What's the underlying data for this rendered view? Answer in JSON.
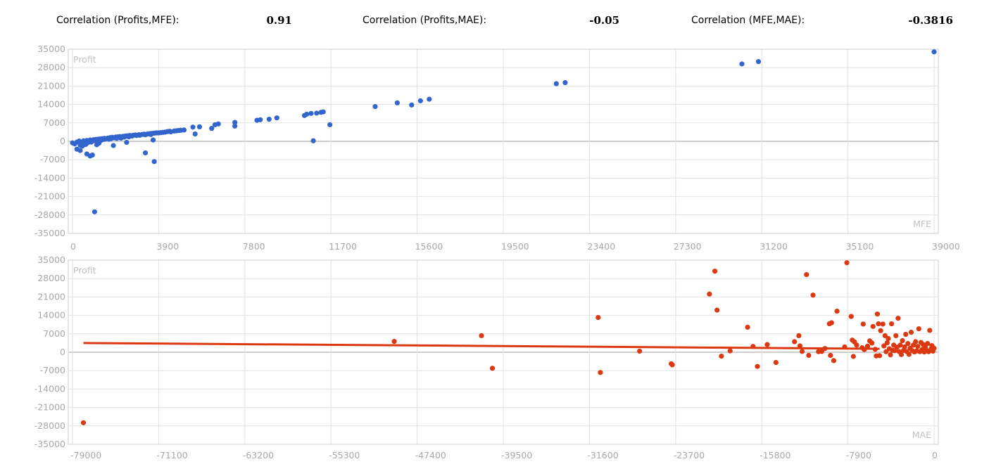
{
  "stats": {
    "corr_profit_mfe_label": "Correlation (Profits,MFE):",
    "corr_profit_mfe_value": "0.91",
    "corr_profit_mae_label": "Correlation (Profits,MAE):",
    "corr_profit_mae_value": "-0.05",
    "corr_mfe_mae_label": "Correlation (MFE,MAE):",
    "corr_mfe_mae_value": "-0.3816"
  },
  "chart_data": [
    {
      "type": "scatter",
      "title": "",
      "xlabel": "MFE",
      "ylabel": "Profit",
      "xlim": [
        0,
        39000
      ],
      "ylim": [
        -35000,
        35000
      ],
      "x_ticks": [
        0,
        3900,
        7800,
        11700,
        15600,
        19500,
        23400,
        27300,
        31200,
        35100,
        39000
      ],
      "y_ticks": [
        35000,
        28000,
        21000,
        14000,
        7000,
        0,
        -7000,
        -14000,
        -21000,
        -28000,
        -35000
      ],
      "grid": true,
      "color": "#3366cc",
      "points": [
        [
          0,
          -600
        ],
        [
          100,
          -1000
        ],
        [
          200,
          -300
        ],
        [
          300,
          100
        ],
        [
          350,
          -1500
        ],
        [
          400,
          -400
        ],
        [
          450,
          -1800
        ],
        [
          500,
          200
        ],
        [
          550,
          -800
        ],
        [
          600,
          -1200
        ],
        [
          650,
          300
        ],
        [
          700,
          -500
        ],
        [
          750,
          100
        ],
        [
          800,
          500
        ],
        [
          850,
          -300
        ],
        [
          900,
          400
        ],
        [
          950,
          600
        ],
        [
          1000,
          200
        ],
        [
          1050,
          700
        ],
        [
          1100,
          -1300
        ],
        [
          1150,
          800
        ],
        [
          1200,
          -700
        ],
        [
          1250,
          900
        ],
        [
          1300,
          400
        ],
        [
          1350,
          1000
        ],
        [
          1400,
          700
        ],
        [
          1450,
          1100
        ],
        [
          1500,
          900
        ],
        [
          1600,
          1200
        ],
        [
          1650,
          800
        ],
        [
          1700,
          1400
        ],
        [
          1750,
          1000
        ],
        [
          1800,
          1500
        ],
        [
          1850,
          -1600
        ],
        [
          1900,
          1300
        ],
        [
          1950,
          1600
        ],
        [
          2000,
          1100
        ],
        [
          2050,
          1700
        ],
        [
          2100,
          1400
        ],
        [
          2150,
          1800
        ],
        [
          2200,
          1200
        ],
        [
          2300,
          1900
        ],
        [
          2350,
          1600
        ],
        [
          2400,
          2000
        ],
        [
          2450,
          -400
        ],
        [
          2500,
          2100
        ],
        [
          2550,
          1700
        ],
        [
          2600,
          2200
        ],
        [
          2700,
          2000
        ],
        [
          2750,
          2300
        ],
        [
          2850,
          2400
        ],
        [
          2900,
          2200
        ],
        [
          3000,
          2500
        ],
        [
          3050,
          2300
        ],
        [
          3150,
          2600
        ],
        [
          3250,
          2700
        ],
        [
          3300,
          2500
        ],
        [
          3400,
          2800
        ],
        [
          3500,
          2900
        ],
        [
          3550,
          2600
        ],
        [
          3600,
          3000
        ],
        [
          3650,
          500
        ],
        [
          3700,
          3100
        ],
        [
          3800,
          3200
        ],
        [
          3900,
          3200
        ],
        [
          4000,
          3300
        ],
        [
          4100,
          3400
        ],
        [
          4200,
          3500
        ],
        [
          4300,
          3700
        ],
        [
          4400,
          3800
        ],
        [
          4450,
          3600
        ],
        [
          4600,
          3900
        ],
        [
          4700,
          4000
        ],
        [
          4800,
          4100
        ],
        [
          4900,
          4200
        ],
        [
          5050,
          4300
        ],
        [
          200,
          -3000
        ],
        [
          350,
          -3500
        ],
        [
          650,
          -4800
        ],
        [
          800,
          -5600
        ],
        [
          900,
          -5200
        ],
        [
          1000,
          -26800
        ],
        [
          3300,
          -4400
        ],
        [
          3700,
          -7700
        ],
        [
          5450,
          5400
        ],
        [
          5550,
          2800
        ],
        [
          5750,
          5500
        ],
        [
          6300,
          4900
        ],
        [
          6450,
          6300
        ],
        [
          6600,
          6600
        ],
        [
          7350,
          5800
        ],
        [
          7350,
          7200
        ],
        [
          8350,
          8000
        ],
        [
          8500,
          8200
        ],
        [
          8900,
          8400
        ],
        [
          9250,
          8900
        ],
        [
          10500,
          9800
        ],
        [
          10600,
          10300
        ],
        [
          10800,
          10600
        ],
        [
          10900,
          200
        ],
        [
          11050,
          10700
        ],
        [
          11250,
          11000
        ],
        [
          11350,
          11200
        ],
        [
          11650,
          6300
        ],
        [
          13700,
          13200
        ],
        [
          14700,
          14600
        ],
        [
          15350,
          13800
        ],
        [
          15750,
          15400
        ],
        [
          16150,
          16000
        ],
        [
          21900,
          21900
        ],
        [
          22300,
          22300
        ],
        [
          30300,
          29400
        ],
        [
          31050,
          30300
        ],
        [
          39000,
          34000
        ]
      ]
    },
    {
      "type": "scatter",
      "title": "",
      "xlabel": "MAE",
      "ylabel": "Profit",
      "xlim": [
        -79000,
        0
      ],
      "ylim": [
        -35000,
        35000
      ],
      "x_ticks": [
        -79000,
        -71100,
        -63200,
        -55300,
        -47400,
        -39500,
        -31600,
        -23700,
        -15800,
        -7900,
        0
      ],
      "y_ticks": [
        35000,
        28000,
        21000,
        14000,
        7000,
        0,
        -7000,
        -14000,
        -21000,
        -28000,
        -35000
      ],
      "grid": true,
      "color": "#dc3912",
      "trendline": [
        [
          -78000,
          3500
        ],
        [
          -5000,
          1300
        ]
      ],
      "points": [
        [
          -78000,
          -26800
        ],
        [
          -49500,
          4100
        ],
        [
          -41500,
          6300
        ],
        [
          -40500,
          -6100
        ],
        [
          -30800,
          13200
        ],
        [
          -30600,
          -7700
        ],
        [
          -27000,
          400
        ],
        [
          -24100,
          -4400
        ],
        [
          -24000,
          -4800
        ],
        [
          -20600,
          22100
        ],
        [
          -20100,
          30800
        ],
        [
          -19900,
          16000
        ],
        [
          -19500,
          -1500
        ],
        [
          -18700,
          500
        ],
        [
          -17100,
          9500
        ],
        [
          -16600,
          2200
        ],
        [
          -16200,
          -5400
        ],
        [
          -15300,
          2900
        ],
        [
          -14500,
          -3900
        ],
        [
          -12800,
          4000
        ],
        [
          -12400,
          6300
        ],
        [
          -12300,
          2400
        ],
        [
          -12100,
          300
        ],
        [
          -11700,
          29500
        ],
        [
          -11500,
          -1200
        ],
        [
          -11100,
          21700
        ],
        [
          -10600,
          200
        ],
        [
          -10300,
          300
        ],
        [
          -10000,
          1400
        ],
        [
          -9600,
          10800
        ],
        [
          -9500,
          -1200
        ],
        [
          -9400,
          11200
        ],
        [
          -9200,
          -3200
        ],
        [
          -8900,
          15600
        ],
        [
          -8200,
          2000
        ],
        [
          -8000,
          34000
        ],
        [
          -7600,
          13600
        ],
        [
          -7500,
          4600
        ],
        [
          -7400,
          -1600
        ],
        [
          -7300,
          3900
        ],
        [
          -7100,
          2700
        ],
        [
          -6600,
          1700
        ],
        [
          -6500,
          10700
        ],
        [
          -6400,
          1000
        ],
        [
          -6100,
          2300
        ],
        [
          -5900,
          4300
        ],
        [
          -5700,
          3500
        ],
        [
          -5600,
          9800
        ],
        [
          -5400,
          1100
        ],
        [
          -5300,
          -1400
        ],
        [
          -5200,
          14500
        ],
        [
          -5100,
          10800
        ],
        [
          -5000,
          -1300
        ],
        [
          -4900,
          8200
        ],
        [
          -4700,
          10700
        ],
        [
          -4600,
          2400
        ],
        [
          -4500,
          6300
        ],
        [
          -4400,
          200
        ],
        [
          -4300,
          3600
        ],
        [
          -4200,
          5200
        ],
        [
          -4100,
          1300
        ],
        [
          -4000,
          -1000
        ],
        [
          -3900,
          10800
        ],
        [
          -3800,
          700
        ],
        [
          -3700,
          2700
        ],
        [
          -3600,
          600
        ],
        [
          -3500,
          6300
        ],
        [
          -3400,
          1900
        ],
        [
          -3300,
          12900
        ],
        [
          -3200,
          200
        ],
        [
          -3100,
          2700
        ],
        [
          -3000,
          -900
        ],
        [
          -2900,
          4400
        ],
        [
          -2800,
          700
        ],
        [
          -2700,
          2000
        ],
        [
          -2600,
          6800
        ],
        [
          -2500,
          200
        ],
        [
          -2400,
          3300
        ],
        [
          -2300,
          -800
        ],
        [
          -2200,
          1500
        ],
        [
          -2100,
          7600
        ],
        [
          -2000,
          600
        ],
        [
          -1900,
          2700
        ],
        [
          -1800,
          100
        ],
        [
          -1700,
          4000
        ],
        [
          -1600,
          500
        ],
        [
          -1500,
          2200
        ],
        [
          -1400,
          8900
        ],
        [
          -1300,
          200
        ],
        [
          -1200,
          3700
        ],
        [
          -1100,
          1000
        ],
        [
          -1000,
          2900
        ],
        [
          -900,
          100
        ],
        [
          -800,
          1800
        ],
        [
          -700,
          600
        ],
        [
          -600,
          3300
        ],
        [
          -500,
          200
        ],
        [
          -400,
          8300
        ],
        [
          -300,
          1200
        ],
        [
          -200,
          2500
        ],
        [
          -100,
          400
        ],
        [
          0,
          1500
        ]
      ]
    }
  ]
}
